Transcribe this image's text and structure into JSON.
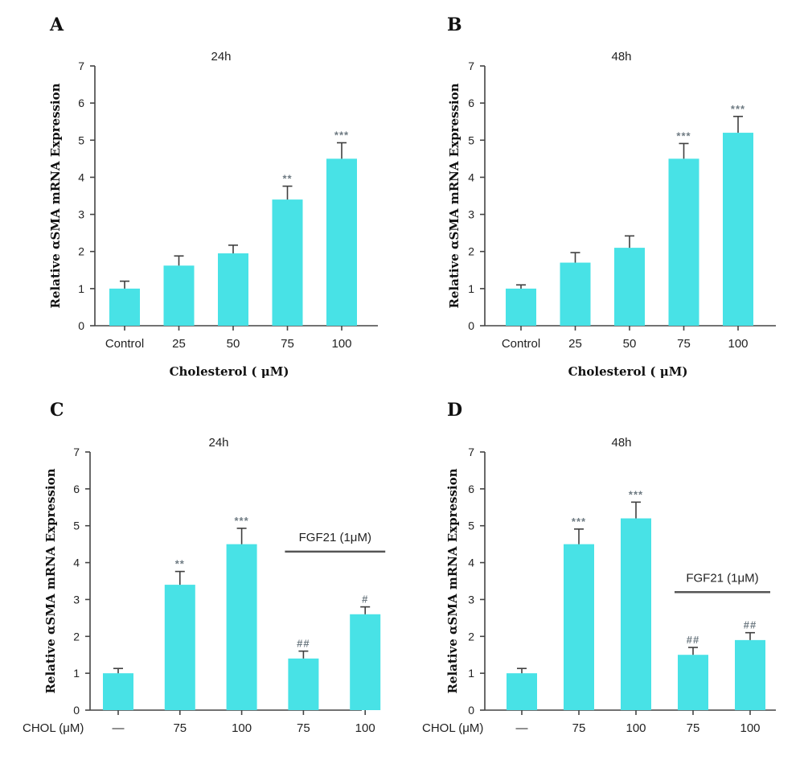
{
  "colors": {
    "bar": "#48e2e6",
    "axis": "#444444",
    "significance": "#6f7b83"
  },
  "chart_data": [
    {
      "panel": "A",
      "type": "bar",
      "title": "24h",
      "ylabel": "Relative αSMA mRNA Expression",
      "xlabel": "Cholesterol ( μM)",
      "x_prefix": "",
      "categories": [
        "Control",
        "25",
        "50",
        "75",
        "100"
      ],
      "values": [
        1.0,
        1.62,
        1.95,
        3.4,
        4.5
      ],
      "errors": [
        0.2,
        0.26,
        0.22,
        0.36,
        0.43
      ],
      "significance": [
        "",
        "",
        "",
        "**",
        "***"
      ],
      "ylim": [
        0,
        7
      ],
      "yticks": [
        "0",
        "1",
        "2",
        "3",
        "4",
        "5",
        "6",
        "7"
      ],
      "bracket": null
    },
    {
      "panel": "B",
      "type": "bar",
      "title": "48h",
      "ylabel": "Relative αSMA mRNA Expression",
      "xlabel": "Cholesterol ( μM)",
      "x_prefix": "",
      "categories": [
        "Control",
        "25",
        "50",
        "75",
        "100"
      ],
      "values": [
        1.0,
        1.7,
        2.1,
        4.5,
        5.2
      ],
      "errors": [
        0.1,
        0.27,
        0.32,
        0.41,
        0.44
      ],
      "significance": [
        "",
        "",
        "",
        "***",
        "***"
      ],
      "ylim": [
        0,
        7
      ],
      "yticks": [
        "0",
        "1",
        "2",
        "3",
        "4",
        "5",
        "6",
        "7"
      ],
      "bracket": null
    },
    {
      "panel": "C",
      "type": "bar",
      "title": "24h",
      "ylabel": "Relative αSMA mRNA Expression",
      "xlabel": "",
      "x_prefix": "CHOL (μM)",
      "categories": [
        "—",
        "75",
        "100",
        "75",
        "100"
      ],
      "values": [
        1.0,
        3.4,
        4.5,
        1.4,
        2.6
      ],
      "errors": [
        0.13,
        0.36,
        0.43,
        0.2,
        0.2
      ],
      "significance": [
        "",
        "**",
        "***",
        "##",
        "#"
      ],
      "ylim": [
        0,
        7
      ],
      "yticks": [
        "0",
        "1",
        "2",
        "3",
        "4",
        "5",
        "6",
        "7"
      ],
      "bracket": {
        "label": "FGF21 (1μM)",
        "from": 3,
        "to": 4,
        "y": 4.3
      }
    },
    {
      "panel": "D",
      "type": "bar",
      "title": "48h",
      "ylabel": "Relative αSMA mRNA Expression",
      "xlabel": "",
      "x_prefix": "CHOL (μM)",
      "categories": [
        "—",
        "75",
        "100",
        "75",
        "100"
      ],
      "values": [
        1.0,
        4.5,
        5.2,
        1.5,
        1.9
      ],
      "errors": [
        0.13,
        0.41,
        0.44,
        0.2,
        0.2
      ],
      "significance": [
        "",
        "***",
        "***",
        "##",
        "##"
      ],
      "ylim": [
        0,
        7
      ],
      "yticks": [
        "0",
        "1",
        "2",
        "3",
        "4",
        "5",
        "6",
        "7"
      ],
      "bracket": {
        "label": "FGF21 (1μM)",
        "from": 3,
        "to": 4,
        "y": 3.2
      }
    }
  ]
}
